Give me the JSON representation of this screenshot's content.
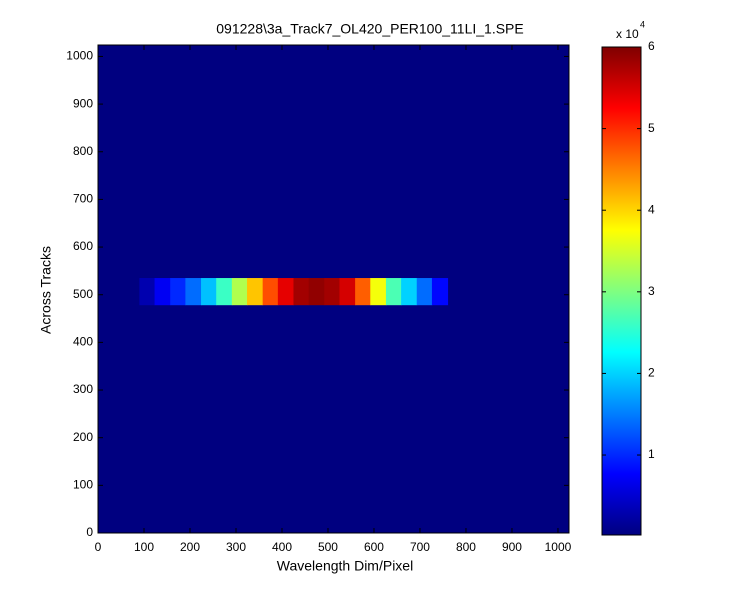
{
  "chart_data": {
    "type": "heatmap",
    "title": "091228\\3a_Track7_OL420_PER100_11LI_1.SPE",
    "xlabel": "Wavelength Dim/Pixel",
    "ylabel": "Across Tracks",
    "xlim": [
      0,
      1024
    ],
    "ylim": [
      0,
      1024
    ],
    "xticks": [
      0,
      100,
      200,
      300,
      400,
      500,
      600,
      700,
      800,
      900,
      1000
    ],
    "yticks": [
      0,
      100,
      200,
      300,
      400,
      500,
      600,
      700,
      800,
      900,
      1000
    ],
    "x_bins": [
      90,
      123,
      157,
      190,
      224,
      257,
      291,
      324,
      358,
      391,
      425,
      458,
      492,
      525,
      559,
      592,
      626,
      659,
      693,
      726,
      760
    ],
    "y_bins": [
      478,
      535
    ],
    "values": [
      3000,
      7000,
      10000,
      14000,
      19000,
      26000,
      33000,
      41000,
      48000,
      54000,
      58000,
      59000,
      58000,
      55000,
      47000,
      37000,
      27000,
      20000,
      14000,
      8000
    ],
    "colormap": "jet",
    "clim": [
      200,
      60000
    ],
    "colorbar_ticks": [
      {
        "value": 10000,
        "label": "1"
      },
      {
        "value": 20000,
        "label": "2"
      },
      {
        "value": 30000,
        "label": "3"
      },
      {
        "value": 40000,
        "label": "4"
      },
      {
        "value": 50000,
        "label": "5"
      },
      {
        "value": 60000,
        "label": "6"
      }
    ],
    "colorbar_multiplier": "x 10",
    "colorbar_exponent": "4"
  }
}
